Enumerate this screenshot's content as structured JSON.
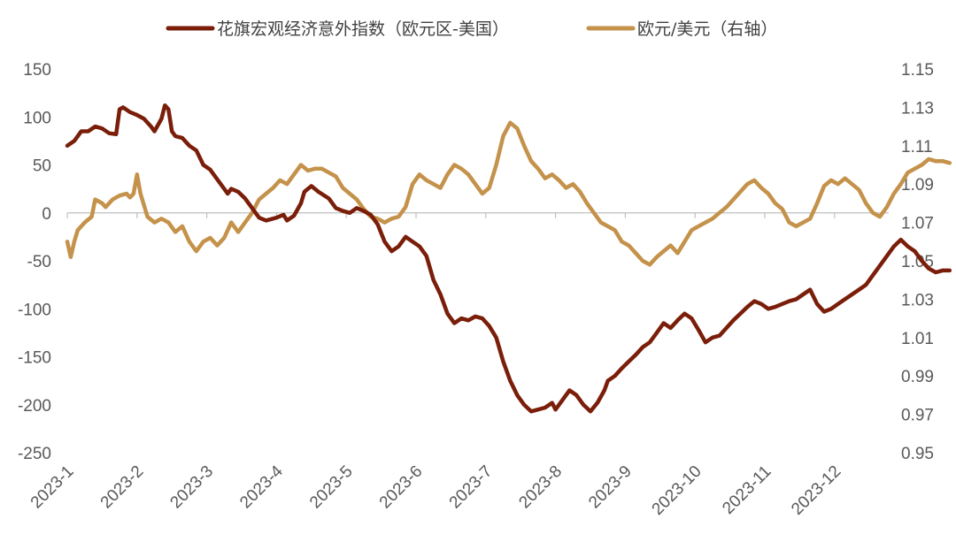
{
  "colors": {
    "citi": "#7a1e0a",
    "eurusd": "#c4924a",
    "axis": "#bfbfbf",
    "text": "#595959"
  },
  "chart_data": {
    "type": "line",
    "title": "",
    "legend_position": "top",
    "x_labels": [
      "2023-1",
      "2023-2",
      "2023-3",
      "2023-4",
      "2023-5",
      "2023-6",
      "2023-7",
      "2023-8",
      "2023-9",
      "2023-10",
      "2023-11",
      "2023-12"
    ],
    "y_left": {
      "ylim": [
        -250,
        150
      ],
      "ticks": [
        150,
        100,
        50,
        0,
        -50,
        -100,
        -150,
        -200,
        -250
      ]
    },
    "y_right": {
      "ylim": [
        0.95,
        1.15
      ],
      "ticks": [
        "1.15",
        "1.13",
        "1.11",
        "1.09",
        "1.07",
        "1.05",
        "1.03",
        "1.01",
        "0.99",
        "0.97",
        "0.95"
      ]
    },
    "series": [
      {
        "name": "花旗宏观经济意外指数（欧元区-美国）",
        "axis": "left",
        "points": [
          [
            0.0,
            70
          ],
          [
            0.1,
            75
          ],
          [
            0.2,
            85
          ],
          [
            0.3,
            85
          ],
          [
            0.4,
            90
          ],
          [
            0.5,
            88
          ],
          [
            0.6,
            83
          ],
          [
            0.7,
            82
          ],
          [
            0.75,
            108
          ],
          [
            0.8,
            110
          ],
          [
            0.9,
            105
          ],
          [
            1.0,
            102
          ],
          [
            1.1,
            98
          ],
          [
            1.2,
            90
          ],
          [
            1.25,
            85
          ],
          [
            1.35,
            98
          ],
          [
            1.4,
            112
          ],
          [
            1.45,
            108
          ],
          [
            1.5,
            85
          ],
          [
            1.55,
            80
          ],
          [
            1.65,
            78
          ],
          [
            1.75,
            70
          ],
          [
            1.85,
            65
          ],
          [
            1.95,
            50
          ],
          [
            2.05,
            45
          ],
          [
            2.15,
            35
          ],
          [
            2.25,
            25
          ],
          [
            2.3,
            20
          ],
          [
            2.35,
            25
          ],
          [
            2.45,
            22
          ],
          [
            2.55,
            15
          ],
          [
            2.65,
            5
          ],
          [
            2.75,
            -5
          ],
          [
            2.85,
            -8
          ],
          [
            3.0,
            -5
          ],
          [
            3.1,
            -2
          ],
          [
            3.15,
            -8
          ],
          [
            3.25,
            -3
          ],
          [
            3.35,
            10
          ],
          [
            3.4,
            22
          ],
          [
            3.5,
            28
          ],
          [
            3.6,
            22
          ],
          [
            3.75,
            15
          ],
          [
            3.85,
            5
          ],
          [
            3.95,
            2
          ],
          [
            4.05,
            0
          ],
          [
            4.15,
            5
          ],
          [
            4.25,
            2
          ],
          [
            4.35,
            -2
          ],
          [
            4.45,
            -12
          ],
          [
            4.55,
            -30
          ],
          [
            4.65,
            -40
          ],
          [
            4.75,
            -35
          ],
          [
            4.85,
            -25
          ],
          [
            4.95,
            -30
          ],
          [
            5.05,
            -35
          ],
          [
            5.15,
            -45
          ],
          [
            5.25,
            -70
          ],
          [
            5.35,
            -85
          ],
          [
            5.45,
            -105
          ],
          [
            5.55,
            -115
          ],
          [
            5.65,
            -110
          ],
          [
            5.75,
            -112
          ],
          [
            5.85,
            -108
          ],
          [
            5.95,
            -110
          ],
          [
            6.05,
            -118
          ],
          [
            6.15,
            -130
          ],
          [
            6.25,
            -155
          ],
          [
            6.35,
            -175
          ],
          [
            6.45,
            -190
          ],
          [
            6.55,
            -200
          ],
          [
            6.65,
            -207
          ],
          [
            6.75,
            -205
          ],
          [
            6.85,
            -203
          ],
          [
            6.95,
            -198
          ],
          [
            7.0,
            -205
          ],
          [
            7.1,
            -195
          ],
          [
            7.2,
            -185
          ],
          [
            7.3,
            -190
          ],
          [
            7.4,
            -200
          ],
          [
            7.5,
            -207
          ],
          [
            7.6,
            -198
          ],
          [
            7.7,
            -185
          ],
          [
            7.75,
            -175
          ],
          [
            7.85,
            -170
          ],
          [
            7.95,
            -162
          ],
          [
            8.05,
            -155
          ],
          [
            8.15,
            -148
          ],
          [
            8.25,
            -140
          ],
          [
            8.35,
            -135
          ],
          [
            8.45,
            -125
          ],
          [
            8.55,
            -115
          ],
          [
            8.65,
            -120
          ],
          [
            8.75,
            -112
          ],
          [
            8.85,
            -105
          ],
          [
            8.95,
            -110
          ],
          [
            9.05,
            -122
          ],
          [
            9.15,
            -135
          ],
          [
            9.25,
            -130
          ],
          [
            9.35,
            -128
          ],
          [
            9.45,
            -120
          ],
          [
            9.55,
            -112
          ],
          [
            9.65,
            -105
          ],
          [
            9.75,
            -98
          ],
          [
            9.85,
            -92
          ],
          [
            9.95,
            -95
          ],
          [
            10.05,
            -100
          ],
          [
            10.15,
            -98
          ],
          [
            10.25,
            -95
          ],
          [
            10.35,
            -92
          ],
          [
            10.45,
            -90
          ],
          [
            10.55,
            -85
          ],
          [
            10.65,
            -80
          ],
          [
            10.75,
            -95
          ],
          [
            10.85,
            -103
          ],
          [
            10.95,
            -100
          ],
          [
            11.05,
            -95
          ],
          [
            11.15,
            -90
          ],
          [
            11.25,
            -85
          ],
          [
            11.35,
            -80
          ],
          [
            11.45,
            -75
          ],
          [
            11.55,
            -65
          ],
          [
            11.65,
            -55
          ],
          [
            11.75,
            -45
          ],
          [
            11.85,
            -35
          ],
          [
            11.95,
            -28
          ],
          [
            12.05,
            -35
          ],
          [
            12.15,
            -40
          ],
          [
            12.25,
            -50
          ],
          [
            12.35,
            -58
          ],
          [
            12.45,
            -62
          ],
          [
            12.55,
            -60
          ],
          [
            12.65,
            -60
          ]
        ]
      },
      {
        "name": "欧元/美元（右轴）",
        "axis": "right",
        "points": [
          [
            0.0,
            1.06
          ],
          [
            0.05,
            1.052
          ],
          [
            0.1,
            1.06
          ],
          [
            0.15,
            1.066
          ],
          [
            0.25,
            1.07
          ],
          [
            0.35,
            1.073
          ],
          [
            0.4,
            1.082
          ],
          [
            0.5,
            1.08
          ],
          [
            0.55,
            1.078
          ],
          [
            0.65,
            1.082
          ],
          [
            0.75,
            1.084
          ],
          [
            0.85,
            1.085
          ],
          [
            0.9,
            1.083
          ],
          [
            0.95,
            1.085
          ],
          [
            1.0,
            1.095
          ],
          [
            1.05,
            1.085
          ],
          [
            1.15,
            1.073
          ],
          [
            1.25,
            1.07
          ],
          [
            1.35,
            1.072
          ],
          [
            1.45,
            1.07
          ],
          [
            1.55,
            1.065
          ],
          [
            1.65,
            1.068
          ],
          [
            1.75,
            1.06
          ],
          [
            1.85,
            1.055
          ],
          [
            1.95,
            1.06
          ],
          [
            2.05,
            1.062
          ],
          [
            2.15,
            1.058
          ],
          [
            2.25,
            1.062
          ],
          [
            2.35,
            1.07
          ],
          [
            2.45,
            1.065
          ],
          [
            2.55,
            1.07
          ],
          [
            2.65,
            1.075
          ],
          [
            2.75,
            1.082
          ],
          [
            2.85,
            1.085
          ],
          [
            2.95,
            1.088
          ],
          [
            3.05,
            1.092
          ],
          [
            3.15,
            1.09
          ],
          [
            3.25,
            1.095
          ],
          [
            3.35,
            1.1
          ],
          [
            3.45,
            1.097
          ],
          [
            3.55,
            1.098
          ],
          [
            3.65,
            1.098
          ],
          [
            3.75,
            1.096
          ],
          [
            3.85,
            1.094
          ],
          [
            3.95,
            1.088
          ],
          [
            4.05,
            1.085
          ],
          [
            4.15,
            1.082
          ],
          [
            4.25,
            1.077
          ],
          [
            4.35,
            1.073
          ],
          [
            4.45,
            1.072
          ],
          [
            4.55,
            1.07
          ],
          [
            4.65,
            1.072
          ],
          [
            4.75,
            1.073
          ],
          [
            4.85,
            1.078
          ],
          [
            4.95,
            1.09
          ],
          [
            5.05,
            1.095
          ],
          [
            5.15,
            1.092
          ],
          [
            5.25,
            1.09
          ],
          [
            5.35,
            1.088
          ],
          [
            5.45,
            1.095
          ],
          [
            5.55,
            1.1
          ],
          [
            5.65,
            1.098
          ],
          [
            5.75,
            1.095
          ],
          [
            5.85,
            1.09
          ],
          [
            5.95,
            1.085
          ],
          [
            6.05,
            1.088
          ],
          [
            6.15,
            1.1
          ],
          [
            6.25,
            1.115
          ],
          [
            6.35,
            1.122
          ],
          [
            6.45,
            1.119
          ],
          [
            6.55,
            1.11
          ],
          [
            6.65,
            1.102
          ],
          [
            6.75,
            1.098
          ],
          [
            6.85,
            1.093
          ],
          [
            6.95,
            1.095
          ],
          [
            7.05,
            1.092
          ],
          [
            7.15,
            1.088
          ],
          [
            7.25,
            1.09
          ],
          [
            7.35,
            1.086
          ],
          [
            7.45,
            1.08
          ],
          [
            7.55,
            1.075
          ],
          [
            7.65,
            1.07
          ],
          [
            7.75,
            1.068
          ],
          [
            7.85,
            1.066
          ],
          [
            7.95,
            1.06
          ],
          [
            8.05,
            1.058
          ],
          [
            8.15,
            1.054
          ],
          [
            8.25,
            1.05
          ],
          [
            8.35,
            1.048
          ],
          [
            8.45,
            1.052
          ],
          [
            8.55,
            1.055
          ],
          [
            8.65,
            1.058
          ],
          [
            8.75,
            1.054
          ],
          [
            8.85,
            1.06
          ],
          [
            8.95,
            1.066
          ],
          [
            9.05,
            1.068
          ],
          [
            9.15,
            1.07
          ],
          [
            9.25,
            1.072
          ],
          [
            9.35,
            1.075
          ],
          [
            9.45,
            1.078
          ],
          [
            9.55,
            1.082
          ],
          [
            9.65,
            1.086
          ],
          [
            9.75,
            1.09
          ],
          [
            9.85,
            1.092
          ],
          [
            9.95,
            1.088
          ],
          [
            10.05,
            1.085
          ],
          [
            10.15,
            1.08
          ],
          [
            10.25,
            1.077
          ],
          [
            10.35,
            1.07
          ],
          [
            10.45,
            1.068
          ],
          [
            10.55,
            1.07
          ],
          [
            10.65,
            1.072
          ],
          [
            10.75,
            1.08
          ],
          [
            10.85,
            1.089
          ],
          [
            10.95,
            1.092
          ],
          [
            11.05,
            1.09
          ],
          [
            11.15,
            1.093
          ],
          [
            11.25,
            1.09
          ],
          [
            11.35,
            1.087
          ],
          [
            11.45,
            1.08
          ],
          [
            11.55,
            1.075
          ],
          [
            11.65,
            1.073
          ],
          [
            11.75,
            1.078
          ],
          [
            11.85,
            1.085
          ],
          [
            11.95,
            1.09
          ],
          [
            12.05,
            1.096
          ],
          [
            12.15,
            1.098
          ],
          [
            12.25,
            1.1
          ],
          [
            12.35,
            1.103
          ],
          [
            12.45,
            1.102
          ],
          [
            12.55,
            1.102
          ],
          [
            12.65,
            1.101
          ]
        ]
      }
    ]
  }
}
